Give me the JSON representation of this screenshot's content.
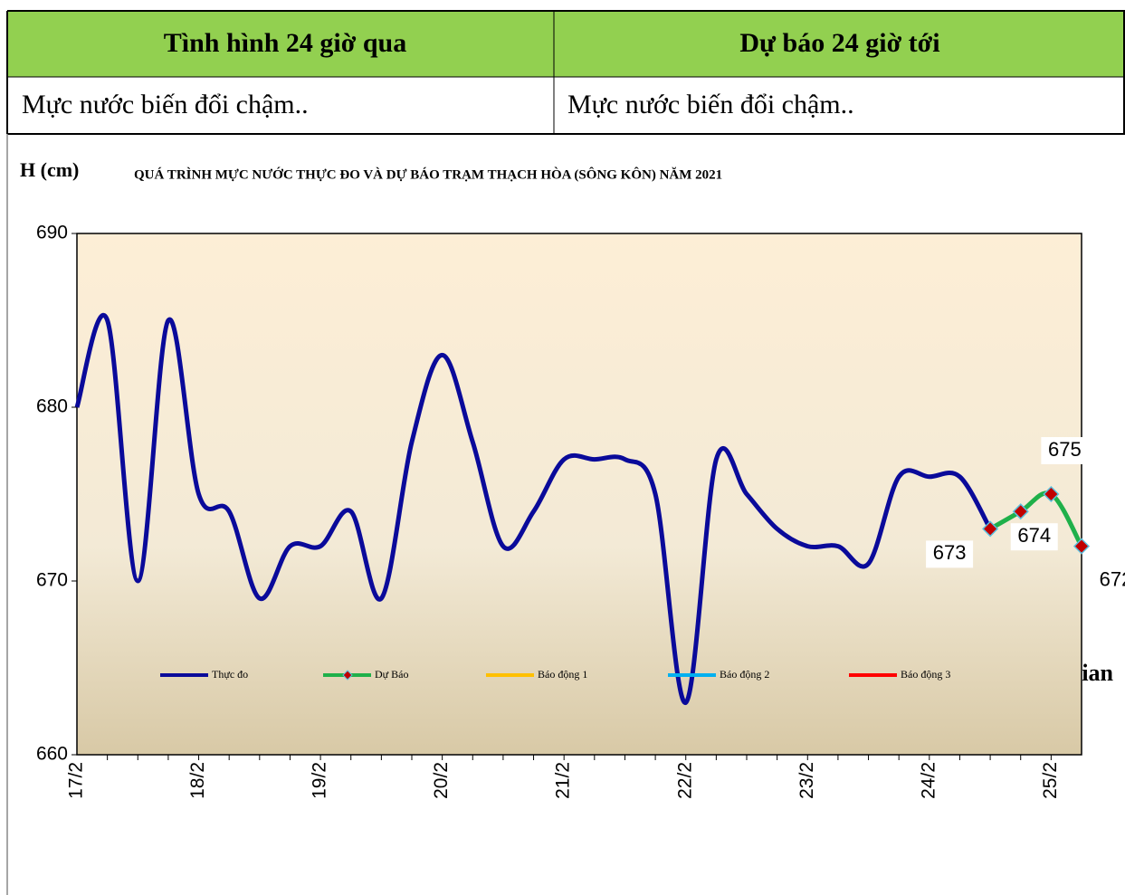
{
  "table": {
    "header": [
      "Tình hình 24 giờ qua",
      "Dự báo 24 giờ tới"
    ],
    "rows": [
      [
        "Mực nước biến đổi chậm..",
        "Mực nước biến đổi chậm.."
      ]
    ]
  },
  "chart_data": {
    "type": "line",
    "title": "QUÁ TRÌNH MỰC NƯỚC THỰC ĐO VÀ DỰ BÁO TRẠM THẠCH HÒA (SÔNG KÔN) NĂM  2021",
    "y_label": "H (cm)",
    "x_label": "Thời gian",
    "categories": [
      "17/2",
      null,
      null,
      null,
      "18/2",
      null,
      null,
      null,
      "19/2",
      null,
      null,
      null,
      "20/2",
      null,
      null,
      null,
      "21/2",
      null,
      null,
      null,
      "22/2",
      null,
      null,
      null,
      "23/2",
      null,
      null,
      null,
      "24/2",
      null,
      null,
      null,
      "25/2",
      null
    ],
    "series": [
      {
        "name": "Thực đo",
        "color": "#0a0a9a",
        "values": [
          680,
          685,
          670,
          685,
          675,
          674,
          669,
          672,
          672,
          674,
          669,
          678,
          683,
          678,
          672,
          674,
          677,
          677,
          677,
          675,
          663,
          677,
          675,
          673,
          672,
          672,
          671,
          676,
          676,
          676,
          673,
          null,
          null,
          null
        ]
      },
      {
        "name": "Dự Báo",
        "color": "#1fb04a",
        "marker_color": "#c00000",
        "values": [
          null,
          null,
          null,
          null,
          null,
          null,
          null,
          null,
          null,
          null,
          null,
          null,
          null,
          null,
          null,
          null,
          null,
          null,
          null,
          null,
          null,
          null,
          null,
          null,
          null,
          null,
          null,
          null,
          null,
          null,
          673,
          674,
          675,
          672
        ]
      },
      {
        "name": "Báo động 1",
        "color": "#ffc000",
        "values": [
          null,
          null,
          null,
          null,
          null,
          null,
          null,
          null,
          null,
          null,
          null,
          null,
          null,
          null,
          null,
          null,
          null,
          null,
          null,
          null,
          null,
          null,
          null,
          null,
          null,
          null,
          null,
          null,
          null,
          null,
          null,
          null,
          null,
          null
        ]
      },
      {
        "name": "Báo động 2",
        "color": "#00b0f0",
        "values": [
          null,
          null,
          null,
          null,
          null,
          null,
          null,
          null,
          null,
          null,
          null,
          null,
          null,
          null,
          null,
          null,
          null,
          null,
          null,
          null,
          null,
          null,
          null,
          null,
          null,
          null,
          null,
          null,
          null,
          null,
          null,
          null,
          null,
          null
        ]
      },
      {
        "name": "Báo động 3",
        "color": "#ff0000",
        "values": [
          null,
          null,
          null,
          null,
          null,
          null,
          null,
          null,
          null,
          null,
          null,
          null,
          null,
          null,
          null,
          null,
          null,
          null,
          null,
          null,
          null,
          null,
          null,
          null,
          null,
          null,
          null,
          null,
          null,
          null,
          null,
          null,
          null,
          null
        ]
      }
    ],
    "ylim": [
      660,
      690
    ],
    "yticks": [
      660,
      670,
      680,
      690
    ]
  }
}
